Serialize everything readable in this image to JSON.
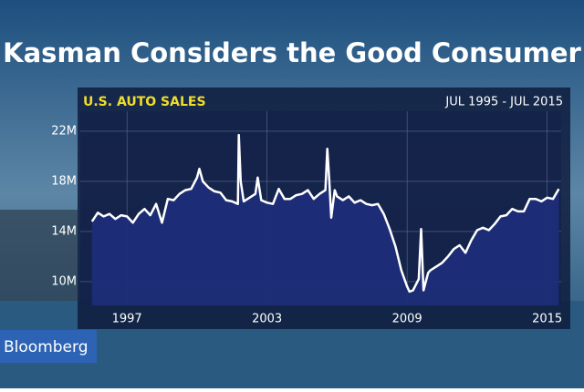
{
  "headline": "Kasman Considers the Good Consumer",
  "logo": "Bloomberg",
  "chart_data": {
    "type": "area",
    "title": "U.S. AUTO SALES",
    "subtitle": "JUL 1995 - JUL 2015",
    "color": "#ffffff",
    "fill": "#1c2d78",
    "x": [
      1995.5,
      1995.75,
      1996.0,
      1996.25,
      1996.5,
      1996.75,
      1997.0,
      1997.25,
      1997.5,
      1997.75,
      1998.0,
      1998.25,
      1998.5,
      1998.75,
      1999.0,
      1999.25,
      1999.5,
      1999.75,
      2000.0,
      2000.1,
      2000.25,
      2000.5,
      2000.75,
      2001.0,
      2001.25,
      2001.5,
      2001.75,
      2001.79,
      2001.87,
      2002.0,
      2002.25,
      2002.5,
      2002.6,
      2002.75,
      2003.0,
      2003.25,
      2003.5,
      2003.75,
      2004.0,
      2004.25,
      2004.5,
      2004.75,
      2005.0,
      2005.25,
      2005.5,
      2005.58,
      2005.67,
      2005.75,
      2005.9,
      2006.0,
      2006.25,
      2006.5,
      2006.75,
      2007.0,
      2007.25,
      2007.5,
      2007.75,
      2008.0,
      2008.25,
      2008.5,
      2008.75,
      2009.0,
      2009.1,
      2009.25,
      2009.5,
      2009.6,
      2009.7,
      2009.9,
      2010.0,
      2010.25,
      2010.5,
      2010.75,
      2011.0,
      2011.25,
      2011.5,
      2011.75,
      2012.0,
      2012.25,
      2012.5,
      2012.75,
      2013.0,
      2013.25,
      2013.5,
      2013.75,
      2014.0,
      2014.25,
      2014.5,
      2014.75,
      2015.0,
      2015.25,
      2015.5
    ],
    "values": [
      14.8,
      15.5,
      15.2,
      15.4,
      15.0,
      15.3,
      15.2,
      14.7,
      15.4,
      15.8,
      15.3,
      16.2,
      14.7,
      16.6,
      16.5,
      17.0,
      17.3,
      17.4,
      18.3,
      19.0,
      18.0,
      17.5,
      17.2,
      17.1,
      16.5,
      16.4,
      16.2,
      21.7,
      18.0,
      16.4,
      16.7,
      17.0,
      18.3,
      16.5,
      16.3,
      16.2,
      17.4,
      16.6,
      16.6,
      16.9,
      17.0,
      17.3,
      16.6,
      17.0,
      17.3,
      20.6,
      17.9,
      15.1,
      17.3,
      16.8,
      16.5,
      16.8,
      16.3,
      16.5,
      16.2,
      16.1,
      16.2,
      15.4,
      14.2,
      12.8,
      10.9,
      9.6,
      9.2,
      9.3,
      10.2,
      14.2,
      9.3,
      10.7,
      10.9,
      11.2,
      11.5,
      12.0,
      12.6,
      12.9,
      12.3,
      13.3,
      14.1,
      14.3,
      14.1,
      14.6,
      15.2,
      15.3,
      15.8,
      15.6,
      15.6,
      16.6,
      16.6,
      16.4,
      16.7,
      16.6,
      17.4
    ],
    "xlim": [
      1995.0,
      2015.6
    ],
    "ylim": [
      8.1,
      23.6
    ],
    "xticks": [
      1997,
      2003,
      2009,
      2015
    ],
    "yticks": [
      {
        "value": 10,
        "label": "10M"
      },
      {
        "value": 14,
        "label": "14M"
      },
      {
        "value": 18,
        "label": "18M"
      },
      {
        "value": 22,
        "label": "22M"
      }
    ],
    "grid": true
  }
}
